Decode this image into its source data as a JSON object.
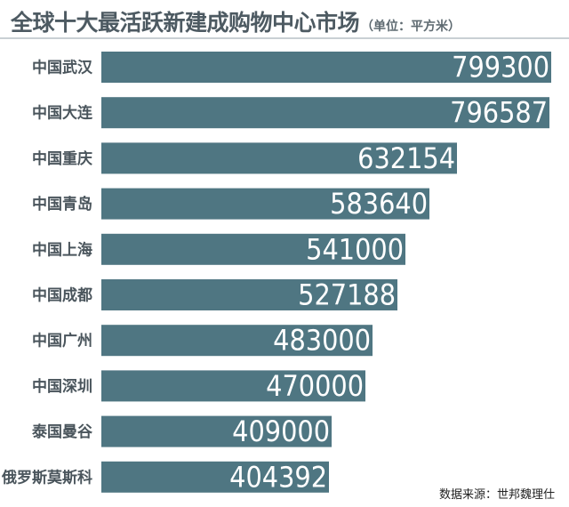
{
  "header": {
    "title": "全球十大最活跃新建成购物中心市场",
    "unit": "（单位：平方米）"
  },
  "source": "数据来源：世邦魏理仕",
  "chart_data": {
    "type": "bar",
    "orientation": "horizontal",
    "title": "全球十大最活跃新建成购物中心市场",
    "unit": "平方米",
    "categories": [
      "中国武汉",
      "中国大连",
      "中国重庆",
      "中国青岛",
      "中国上海",
      "中国成都",
      "中国广州",
      "中国深圳",
      "泰国曼谷",
      "俄罗斯莫斯科"
    ],
    "values": [
      799300,
      796587,
      632154,
      583640,
      541000,
      527188,
      483000,
      470000,
      409000,
      404392
    ],
    "xlim": [
      0,
      800000
    ],
    "grid": false,
    "legend": "none",
    "colors": {
      "bar": "#4f7682",
      "value_text": "#ffffff",
      "category_text": "#4a555c"
    }
  }
}
